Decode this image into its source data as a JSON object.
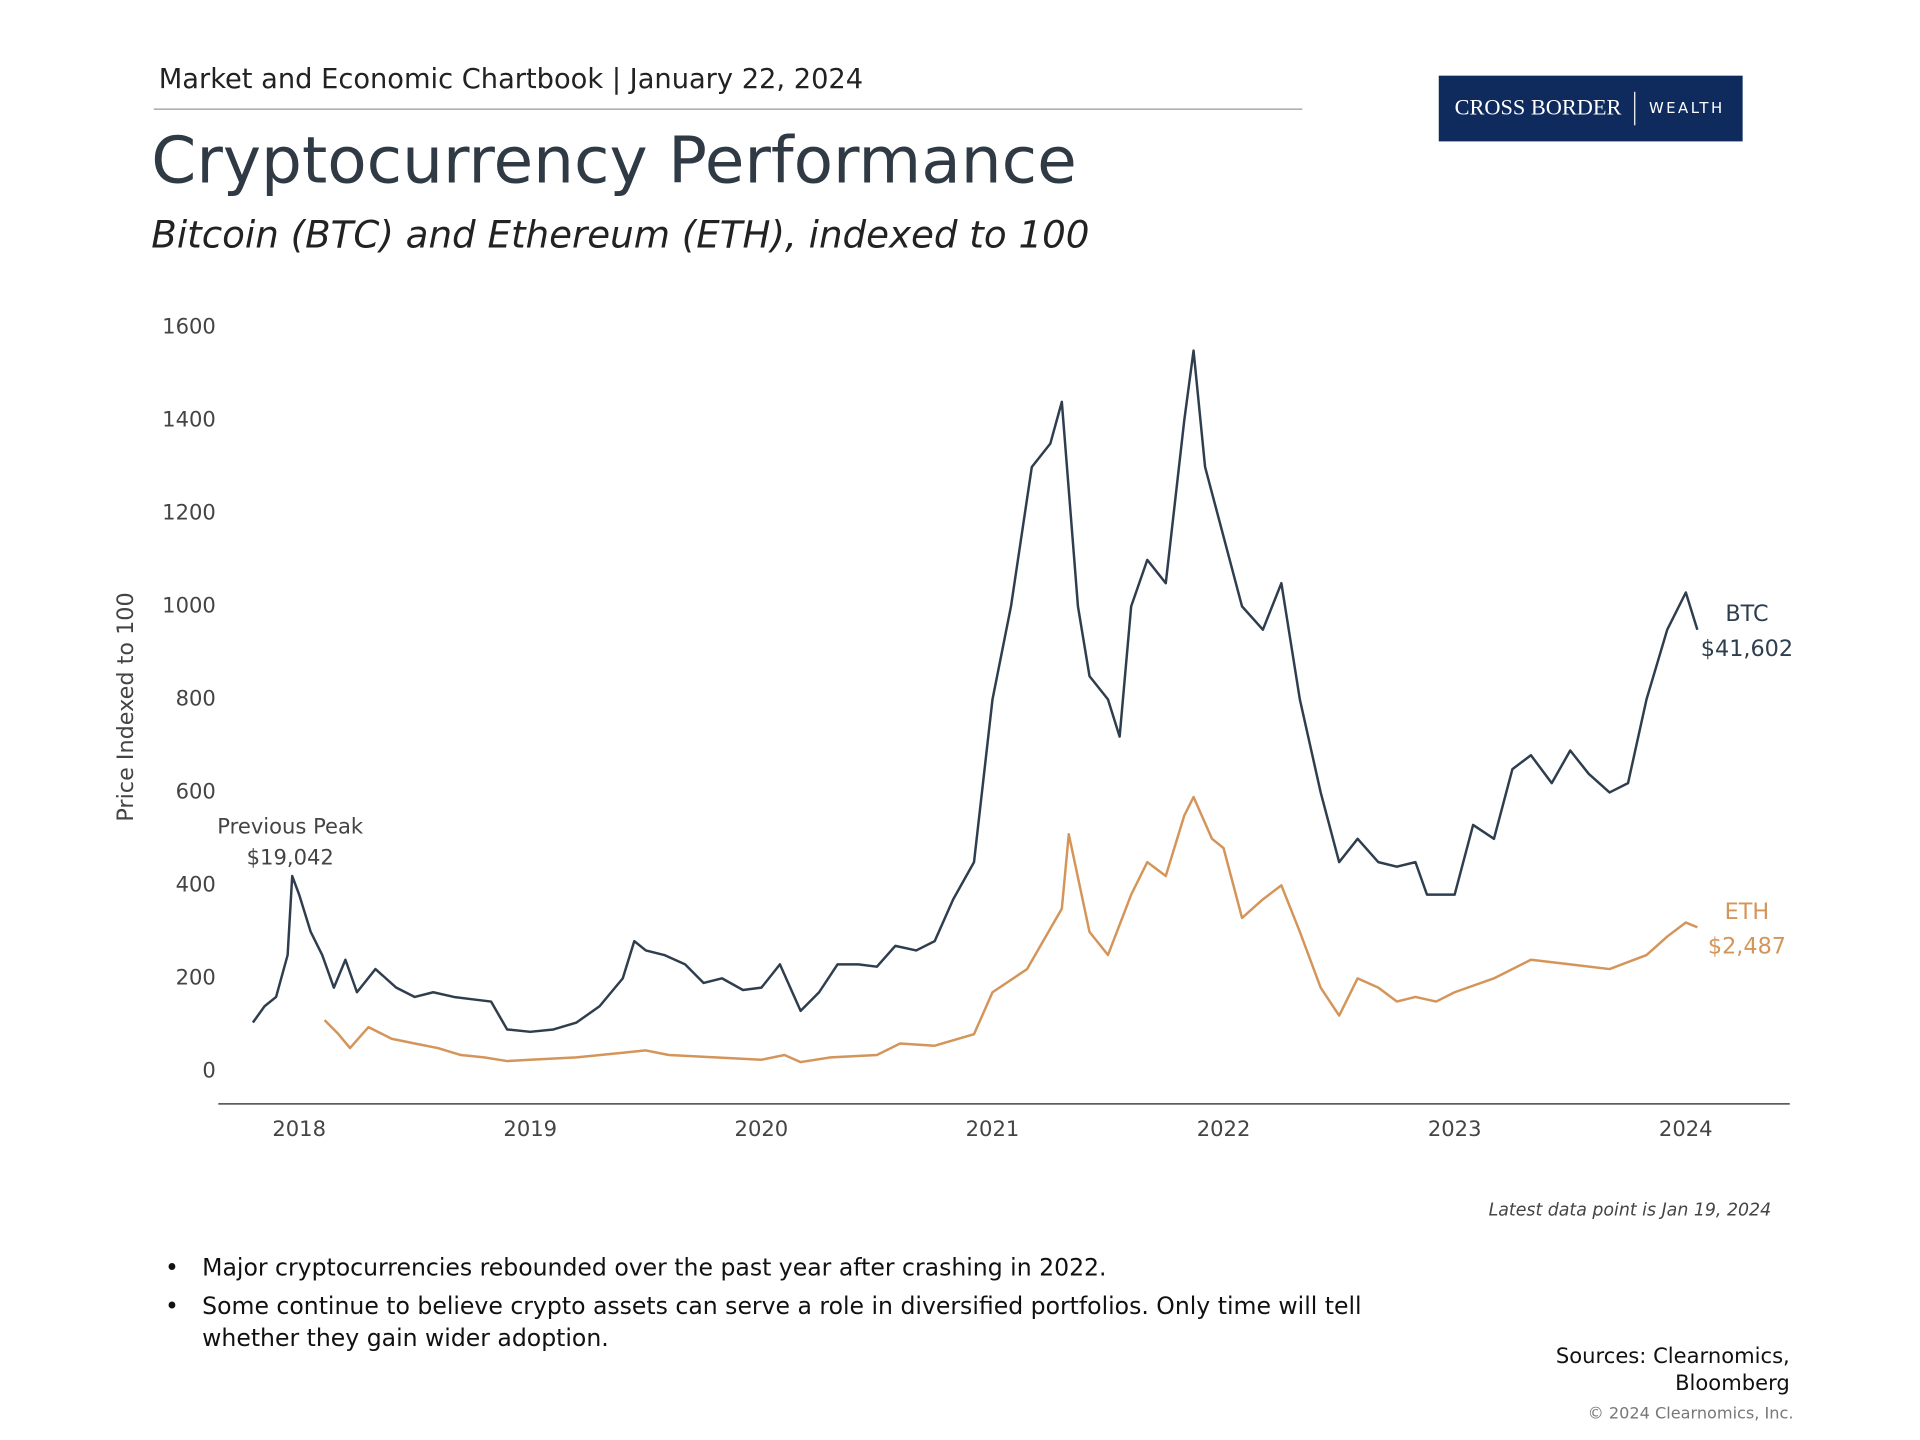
{
  "header": {
    "text": "Market and Economic Chartbook | January 22, 2024",
    "title": "Cryptocurrency Performance",
    "subtitle": "Bitcoin (BTC) and Ethereum (ETH), indexed to 100"
  },
  "logo": {
    "name": "CROSS BORDER",
    "tag": "WEALTH"
  },
  "chart_data": {
    "type": "line",
    "y_label": "Price Indexed to 100",
    "xlim": [
      2017.65,
      2024.45
    ],
    "xticks": [
      2018,
      2019,
      2020,
      2021,
      2022,
      2023,
      2024
    ],
    "ylim": [
      -70,
      1600
    ],
    "yticks": [
      0,
      200,
      400,
      600,
      800,
      1000,
      1200,
      1400,
      1600
    ],
    "grid": false,
    "annotations": [
      {
        "text": [
          "Previous Peak",
          "$19,042"
        ]
      }
    ],
    "footnote": "Latest data point is Jan 19, 2024",
    "series": [
      {
        "name": "BTC",
        "label": "$41,602",
        "color": "#2f3e4e",
        "x": [
          2017.8,
          2017.85,
          2017.9,
          2017.95,
          2017.97,
          2018.0,
          2018.05,
          2018.1,
          2018.15,
          2018.2,
          2018.25,
          2018.33,
          2018.42,
          2018.5,
          2018.58,
          2018.67,
          2018.75,
          2018.83,
          2018.9,
          2019.0,
          2019.1,
          2019.2,
          2019.3,
          2019.4,
          2019.45,
          2019.5,
          2019.58,
          2019.67,
          2019.75,
          2019.83,
          2019.92,
          2020.0,
          2020.08,
          2020.17,
          2020.25,
          2020.33,
          2020.42,
          2020.5,
          2020.58,
          2020.67,
          2020.75,
          2020.83,
          2020.92,
          2021.0,
          2021.08,
          2021.17,
          2021.25,
          2021.3,
          2021.37,
          2021.42,
          2021.5,
          2021.55,
          2021.6,
          2021.67,
          2021.75,
          2021.83,
          2021.87,
          2021.92,
          2022.0,
          2022.08,
          2022.17,
          2022.25,
          2022.33,
          2022.42,
          2022.5,
          2022.58,
          2022.67,
          2022.75,
          2022.83,
          2022.88,
          2023.0,
          2023.08,
          2023.17,
          2023.25,
          2023.33,
          2023.42,
          2023.5,
          2023.58,
          2023.67,
          2023.75,
          2023.83,
          2023.92,
          2024.0,
          2024.05
        ],
        "values": [
          105,
          140,
          160,
          250,
          420,
          380,
          300,
          250,
          180,
          240,
          170,
          220,
          180,
          160,
          170,
          160,
          155,
          150,
          90,
          85,
          90,
          105,
          140,
          200,
          280,
          260,
          250,
          230,
          190,
          200,
          175,
          180,
          230,
          130,
          170,
          230,
          230,
          225,
          270,
          260,
          280,
          370,
          450,
          800,
          1000,
          1300,
          1350,
          1440,
          1000,
          850,
          800,
          720,
          1000,
          1100,
          1050,
          1400,
          1550,
          1300,
          1150,
          1000,
          950,
          1050,
          800,
          600,
          450,
          500,
          450,
          440,
          450,
          380,
          380,
          530,
          500,
          650,
          680,
          620,
          690,
          640,
          600,
          620,
          800,
          950,
          1030,
          950
        ]
      },
      {
        "name": "ETH",
        "label": "$2,487",
        "color": "#d4955a",
        "x": [
          2018.11,
          2018.17,
          2018.22,
          2018.3,
          2018.4,
          2018.5,
          2018.6,
          2018.7,
          2018.8,
          2018.9,
          2019.0,
          2019.2,
          2019.4,
          2019.5,
          2019.6,
          2019.8,
          2020.0,
          2020.1,
          2020.17,
          2020.3,
          2020.5,
          2020.6,
          2020.75,
          2020.92,
          2021.0,
          2021.15,
          2021.3,
          2021.33,
          2021.42,
          2021.5,
          2021.6,
          2021.67,
          2021.75,
          2021.83,
          2021.87,
          2021.95,
          2022.0,
          2022.08,
          2022.17,
          2022.25,
          2022.33,
          2022.42,
          2022.5,
          2022.58,
          2022.67,
          2022.75,
          2022.83,
          2022.92,
          2023.0,
          2023.17,
          2023.33,
          2023.5,
          2023.67,
          2023.83,
          2023.92,
          2024.0,
          2024.05
        ],
        "values": [
          110,
          80,
          50,
          95,
          70,
          60,
          50,
          35,
          30,
          22,
          25,
          30,
          40,
          45,
          35,
          30,
          25,
          35,
          20,
          30,
          35,
          60,
          55,
          80,
          170,
          220,
          350,
          510,
          300,
          250,
          380,
          450,
          420,
          550,
          590,
          500,
          480,
          330,
          370,
          400,
          300,
          180,
          120,
          200,
          180,
          150,
          160,
          150,
          170,
          200,
          240,
          230,
          220,
          250,
          290,
          320,
          310
        ]
      }
    ]
  },
  "bullets": [
    "Major cryptocurrencies rebounded over the past year after crashing in 2022.",
    [
      "Some continue to believe crypto assets can serve a role in diversified portfolios. Only time will tell",
      "whether they gain wider adoption."
    ]
  ],
  "sources": [
    "Sources: Clearnomics,",
    "Bloomberg"
  ],
  "copyright": "© 2024 Clearnomics, Inc."
}
